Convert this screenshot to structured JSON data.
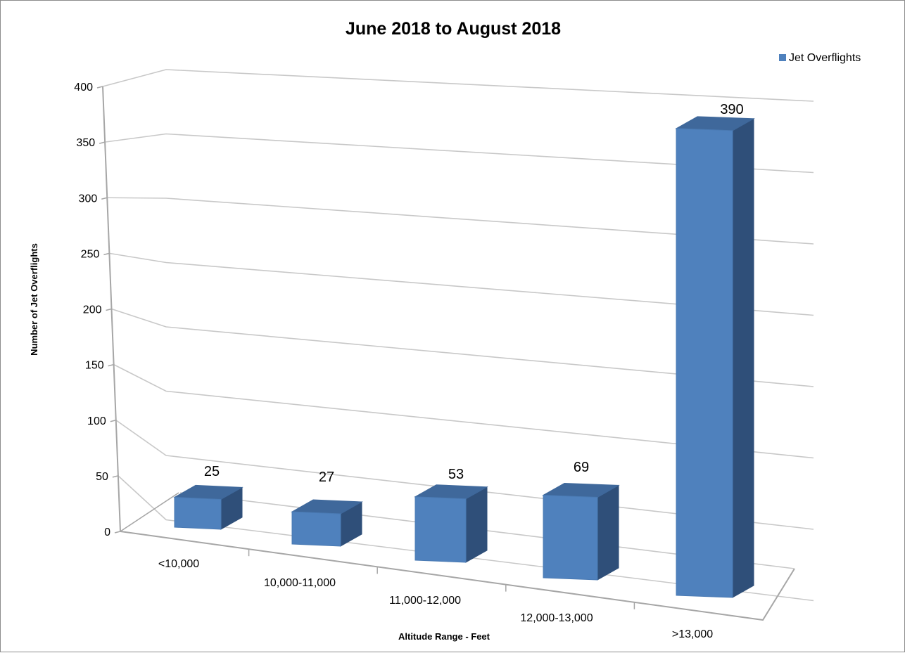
{
  "chart_data": {
    "type": "bar",
    "title": "June 2018  to August 2018",
    "xlabel": "Altitude Range - Feet",
    "ylabel": "Number of Jet Overflights",
    "categories": [
      "<10,000",
      "10,000-11,000",
      "11,000-12,000",
      "12,000-13,000",
      ">13,000"
    ],
    "series": [
      {
        "name": "Jet Overflights",
        "values": [
          25,
          27,
          53,
          69,
          390
        ]
      }
    ],
    "ylim": [
      0,
      400
    ],
    "yticks": [
      0,
      50,
      100,
      150,
      200,
      250,
      300,
      350,
      400
    ],
    "data_labels": [
      "25",
      "27",
      "53",
      "69",
      "390"
    ],
    "legend_position": "top-right",
    "grid": true,
    "style": "3d-column",
    "colors": {
      "bar_front": "#4f81bd",
      "bar_top": "#3f689b",
      "bar_side": "#2f4f79",
      "gridline": "#c8c8c8",
      "axis": "#a6a6a6"
    }
  }
}
